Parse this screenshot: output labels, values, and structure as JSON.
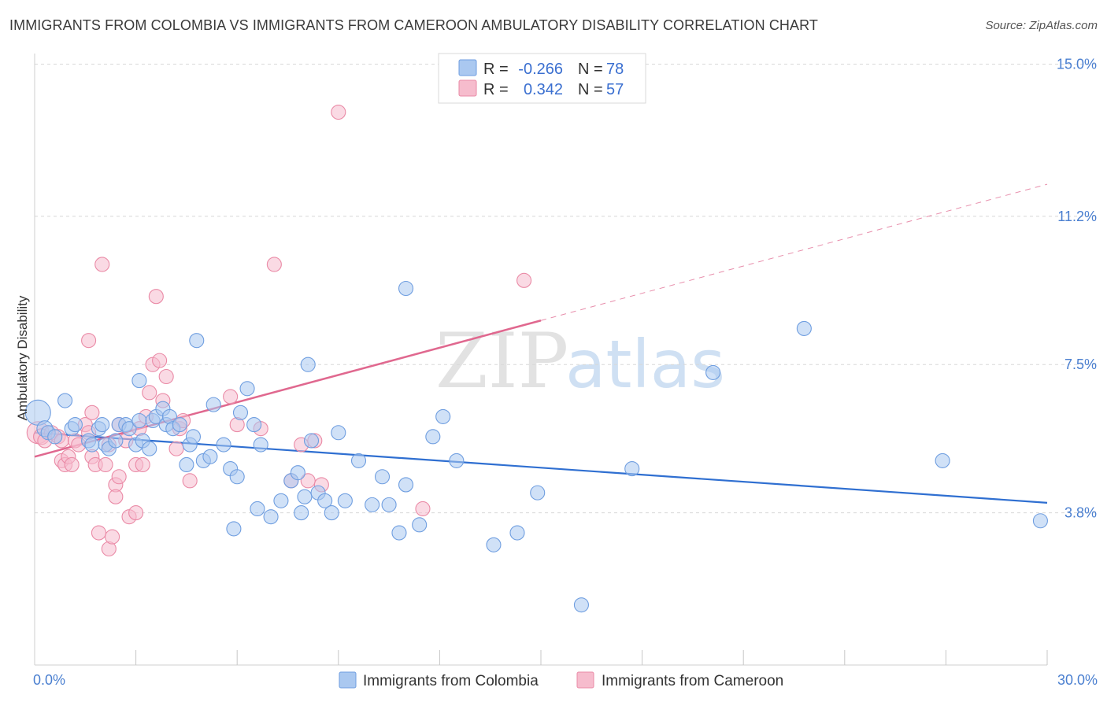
{
  "title": "IMMIGRANTS FROM COLOMBIA VS IMMIGRANTS FROM CAMEROON AMBULATORY DISABILITY CORRELATION CHART",
  "source": "Source: ZipAtlas.com",
  "watermark": {
    "zip": "ZIP",
    "atlas": "atlas"
  },
  "colors": {
    "blue_fill": "#aac8f0",
    "blue_stroke": "#6f9ee0",
    "blue_line": "#2f6fd1",
    "pink_fill": "#f6bccd",
    "pink_stroke": "#ea8aa6",
    "pink_line": "#e0688f",
    "grid": "#d8d8d8",
    "tick_text": "#4a7fd0"
  },
  "legend": {
    "rows": [
      {
        "r_label": "R =",
        "r_value": "-0.266",
        "n_label": "N =",
        "n_value": "78"
      },
      {
        "r_label": "R =",
        "r_value": "0.342",
        "n_label": "N =",
        "n_value": "57"
      }
    ]
  },
  "bottom_legend": {
    "colombia": "Immigrants from Colombia",
    "cameroon": "Immigrants from Cameroon"
  },
  "chart_data": {
    "type": "scatter",
    "title": "IMMIGRANTS FROM COLOMBIA VS IMMIGRANTS FROM CAMEROON AMBULATORY DISABILITY CORRELATION CHART",
    "xlabel": "",
    "ylabel": "Ambulatory Disability",
    "xlim": [
      0,
      30
    ],
    "ylim": [
      0,
      15.5
    ],
    "x_tick_labels": [
      {
        "value": 0,
        "label": "0.0%"
      },
      {
        "value": 30,
        "label": "30.0%"
      }
    ],
    "y_ticks": [
      {
        "value": 3.8,
        "label": "3.8%"
      },
      {
        "value": 7.5,
        "label": "7.5%"
      },
      {
        "value": 11.2,
        "label": "11.2%"
      },
      {
        "value": 15.0,
        "label": "15.0%"
      }
    ],
    "x_minor_ticks": [
      3,
      6,
      9,
      12,
      15,
      18,
      21,
      24,
      27,
      30
    ],
    "series": [
      {
        "name": "Immigrants from Colombia",
        "color": "blue",
        "trend": {
          "x0": 0,
          "y0": 5.8,
          "x1": 30,
          "y1": 4.05,
          "dash_from": null
        },
        "points": [
          [
            0.1,
            6.3,
            16
          ],
          [
            0.3,
            5.9,
            10
          ],
          [
            0.4,
            5.8,
            9
          ],
          [
            0.6,
            5.7,
            9
          ],
          [
            0.9,
            6.6,
            9
          ],
          [
            1.1,
            5.9,
            9
          ],
          [
            1.2,
            6.0,
            9
          ],
          [
            1.6,
            5.6,
            9
          ],
          [
            1.7,
            5.5,
            9
          ],
          [
            1.9,
            5.9,
            9
          ],
          [
            2.1,
            5.5,
            9
          ],
          [
            2.0,
            6.0,
            9
          ],
          [
            2.2,
            5.4,
            9
          ],
          [
            2.4,
            5.6,
            9
          ],
          [
            2.5,
            6.0,
            9
          ],
          [
            2.7,
            6.0,
            9
          ],
          [
            2.8,
            5.9,
            9
          ],
          [
            3.0,
            5.5,
            9
          ],
          [
            3.2,
            5.6,
            9
          ],
          [
            3.4,
            5.4,
            9
          ],
          [
            3.1,
            6.1,
            9
          ],
          [
            3.1,
            7.1,
            9
          ],
          [
            3.5,
            6.1,
            9
          ],
          [
            3.6,
            6.2,
            9
          ],
          [
            3.8,
            6.4,
            9
          ],
          [
            3.9,
            6.0,
            9
          ],
          [
            4.0,
            6.2,
            9
          ],
          [
            4.1,
            5.9,
            9
          ],
          [
            4.3,
            6.0,
            9
          ],
          [
            4.6,
            5.5,
            9
          ],
          [
            4.7,
            5.7,
            9
          ],
          [
            4.5,
            5.0,
            9
          ],
          [
            4.8,
            8.1,
            9
          ],
          [
            5.0,
            5.1,
            9
          ],
          [
            5.2,
            5.2,
            9
          ],
          [
            5.3,
            6.5,
            9
          ],
          [
            5.6,
            5.5,
            9
          ],
          [
            5.8,
            4.9,
            9
          ],
          [
            5.9,
            3.4,
            9
          ],
          [
            6.0,
            4.7,
            9
          ],
          [
            6.1,
            6.3,
            9
          ],
          [
            6.3,
            6.9,
            9
          ],
          [
            6.5,
            6.0,
            9
          ],
          [
            6.6,
            3.9,
            9
          ],
          [
            6.7,
            5.5,
            9
          ],
          [
            7.0,
            3.7,
            9
          ],
          [
            7.3,
            4.1,
            9
          ],
          [
            7.6,
            4.6,
            9
          ],
          [
            7.8,
            4.8,
            9
          ],
          [
            7.9,
            3.8,
            9
          ],
          [
            8.0,
            4.2,
            9
          ],
          [
            8.2,
            5.6,
            9
          ],
          [
            8.4,
            4.3,
            9
          ],
          [
            8.6,
            4.1,
            9
          ],
          [
            8.8,
            3.8,
            9
          ],
          [
            8.1,
            7.5,
            9
          ],
          [
            9.0,
            5.8,
            9
          ],
          [
            9.2,
            4.1,
            9
          ],
          [
            9.6,
            5.1,
            9
          ],
          [
            10.0,
            4.0,
            9
          ],
          [
            10.3,
            4.7,
            9
          ],
          [
            10.5,
            4.0,
            9
          ],
          [
            10.8,
            3.3,
            9
          ],
          [
            11.0,
            4.5,
            9
          ],
          [
            11.0,
            9.4,
            9
          ],
          [
            11.4,
            3.5,
            9
          ],
          [
            11.8,
            5.7,
            9
          ],
          [
            12.1,
            6.2,
            9
          ],
          [
            12.5,
            5.1,
            9
          ],
          [
            13.6,
            3.0,
            9
          ],
          [
            14.3,
            3.3,
            9
          ],
          [
            14.9,
            4.3,
            9
          ],
          [
            16.2,
            1.5,
            9
          ],
          [
            17.7,
            4.9,
            9
          ],
          [
            20.1,
            7.3,
            9
          ],
          [
            22.8,
            8.4,
            9
          ],
          [
            26.9,
            5.1,
            9
          ],
          [
            29.8,
            3.6,
            9
          ]
        ]
      },
      {
        "name": "Immigrants from Cameroon",
        "color": "pink",
        "trend": {
          "x0": 0,
          "y0": 5.2,
          "x1": 30,
          "y1": 12.0,
          "dash_from": 15.0
        },
        "points": [
          [
            0.1,
            5.8,
            14
          ],
          [
            0.2,
            5.7,
            10
          ],
          [
            0.3,
            5.6,
            9
          ],
          [
            0.5,
            5.8,
            9
          ],
          [
            0.7,
            5.7,
            9
          ],
          [
            0.8,
            5.6,
            9
          ],
          [
            0.8,
            5.1,
            9
          ],
          [
            0.9,
            5.0,
            9
          ],
          [
            1.0,
            5.2,
            9
          ],
          [
            1.1,
            5.0,
            9
          ],
          [
            1.2,
            5.6,
            9
          ],
          [
            1.3,
            5.5,
            9
          ],
          [
            1.5,
            6.0,
            9
          ],
          [
            1.6,
            5.8,
            9
          ],
          [
            1.7,
            5.2,
            9
          ],
          [
            1.6,
            8.1,
            9
          ],
          [
            1.8,
            5.0,
            9
          ],
          [
            1.7,
            6.3,
            9
          ],
          [
            1.9,
            3.3,
            9
          ],
          [
            2.0,
            10.0,
            9
          ],
          [
            2.1,
            5.0,
            9
          ],
          [
            2.2,
            5.5,
            9
          ],
          [
            2.2,
            2.9,
            9
          ],
          [
            2.3,
            3.2,
            9
          ],
          [
            2.4,
            4.5,
            9
          ],
          [
            2.5,
            4.7,
            9
          ],
          [
            2.4,
            4.2,
            9
          ],
          [
            2.5,
            6.0,
            9
          ],
          [
            2.7,
            5.6,
            9
          ],
          [
            2.8,
            3.7,
            9
          ],
          [
            3.0,
            3.8,
            9
          ],
          [
            3.0,
            5.0,
            9
          ],
          [
            3.1,
            5.9,
            9
          ],
          [
            3.2,
            5.0,
            9
          ],
          [
            3.3,
            6.2,
            9
          ],
          [
            3.4,
            6.8,
            9
          ],
          [
            3.5,
            7.5,
            9
          ],
          [
            3.6,
            9.2,
            9
          ],
          [
            3.7,
            7.6,
            9
          ],
          [
            3.8,
            6.6,
            9
          ],
          [
            3.9,
            7.2,
            9
          ],
          [
            4.2,
            5.4,
            9
          ],
          [
            4.3,
            5.9,
            9
          ],
          [
            4.4,
            6.1,
            9
          ],
          [
            4.6,
            4.6,
            9
          ],
          [
            5.8,
            6.7,
            9
          ],
          [
            6.0,
            6.0,
            9
          ],
          [
            6.7,
            5.9,
            9
          ],
          [
            7.1,
            10.0,
            9
          ],
          [
            7.6,
            4.6,
            9
          ],
          [
            7.9,
            5.5,
            9
          ],
          [
            8.1,
            4.6,
            9
          ],
          [
            8.3,
            5.6,
            9
          ],
          [
            8.5,
            4.5,
            9
          ],
          [
            9.0,
            13.8,
            9
          ],
          [
            11.5,
            3.9,
            9
          ],
          [
            14.5,
            9.6,
            9
          ]
        ]
      }
    ]
  }
}
